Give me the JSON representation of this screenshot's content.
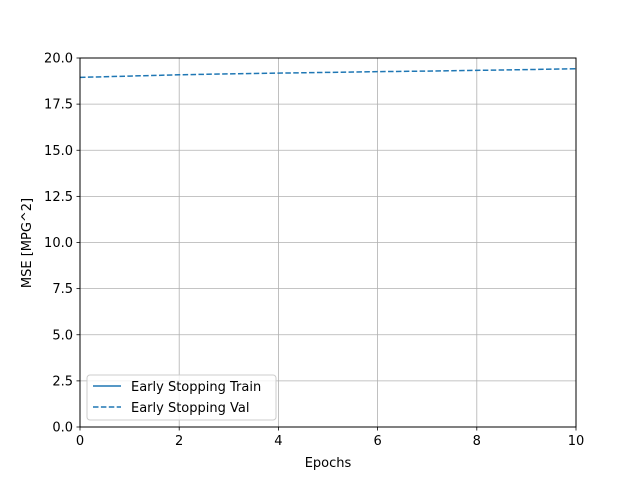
{
  "chart_data": {
    "type": "line",
    "title": "",
    "xlabel": "Epochs",
    "ylabel": "MSE [MPG^2]",
    "xlim": [
      0,
      10
    ],
    "ylim": [
      0,
      20
    ],
    "xticks": [
      "0",
      "2",
      "4",
      "6",
      "8",
      "10"
    ],
    "yticks": [
      "0.0",
      "2.5",
      "5.0",
      "7.5",
      "10.0",
      "12.5",
      "15.0",
      "17.5",
      "20.0"
    ],
    "grid": true,
    "legend_position": "lower-left",
    "series": [
      {
        "name": "Early Stopping Train",
        "style": "solid",
        "color": "#1f77b4",
        "x": [],
        "y": []
      },
      {
        "name": "Early Stopping Val",
        "style": "dashed",
        "color": "#1f77b4",
        "x": [
          0,
          1,
          2,
          3,
          4,
          5,
          6,
          7,
          8,
          9,
          10
        ],
        "y": [
          18.95,
          19.02,
          19.09,
          19.14,
          19.18,
          19.22,
          19.26,
          19.29,
          19.33,
          19.37,
          19.42
        ]
      }
    ]
  }
}
